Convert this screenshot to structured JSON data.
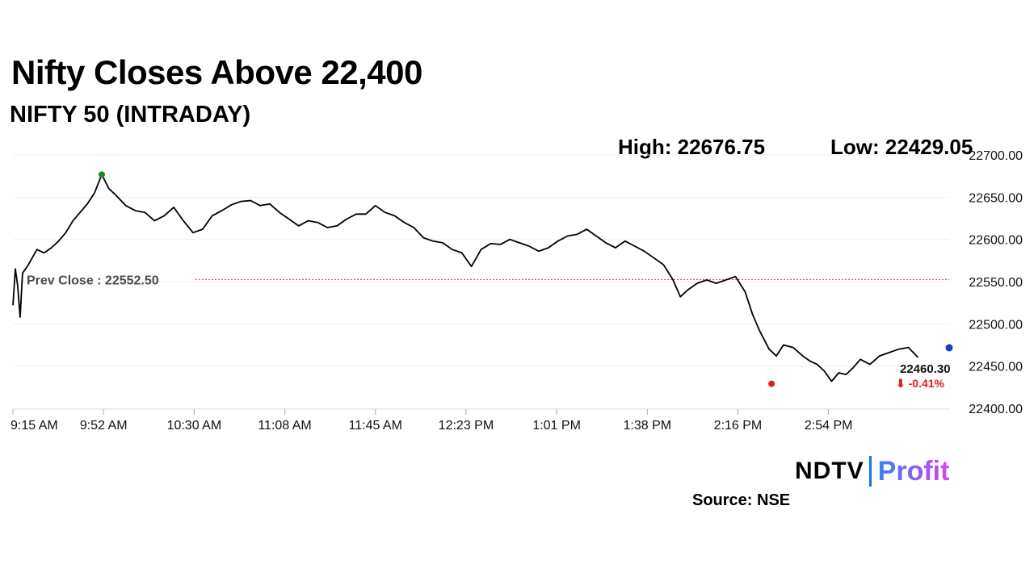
{
  "header": {
    "title": "Nifty Closes Above 22,400",
    "subtitle": "NIFTY 50 (INTRADAY)",
    "high_label": "High: 22676.75",
    "low_label": "Low: 22429.05"
  },
  "footer": {
    "source": "Source: NSE",
    "brand_main": "NDTV",
    "brand_sub": "Profit"
  },
  "chart_data": {
    "type": "line",
    "title": "NIFTY 50 (INTRADAY)",
    "xlabel": "",
    "ylabel": "",
    "x_ticks": [
      "9:15 AM",
      "9:52 AM",
      "10:30 AM",
      "11:08 AM",
      "11:45 AM",
      "12:23 PM",
      "1:01 PM",
      "1:38 PM",
      "2:16 PM",
      "2:54 PM"
    ],
    "y_ticks": [
      "22400.00",
      "22450.00",
      "22500.00",
      "22550.00",
      "22600.00",
      "22650.00",
      "22700.00"
    ],
    "ylim": [
      22400,
      22700
    ],
    "x_range_minutes": [
      555,
      945
    ],
    "prev_close": 22552.5,
    "prev_close_label": "Prev Close : 22552.50",
    "high": {
      "time_min": 592,
      "value": 22676.75
    },
    "low": {
      "time_min": 871,
      "value": 22429.05
    },
    "last": {
      "time_min": 932,
      "value": 22460.3,
      "change": "-0.41%",
      "value_label": "22460.30",
      "change_label": "⬇ -0.41%"
    },
    "end_marker": {
      "time_min": 945,
      "value": 22460.3
    },
    "colors": {
      "line": "#000000",
      "prev_close": "#e53935",
      "high": "#1b8a2e",
      "low": "#e11d1d",
      "end": "#1e3fbf",
      "change": "#e11d1d"
    },
    "series": [
      {
        "name": "NIFTY 50",
        "points": [
          [
            555,
            22522
          ],
          [
            556,
            22565
          ],
          [
            557,
            22545
          ],
          [
            558,
            22508
          ],
          [
            559,
            22560
          ],
          [
            561,
            22568
          ],
          [
            563,
            22578
          ],
          [
            565,
            22588
          ],
          [
            568,
            22584
          ],
          [
            571,
            22590
          ],
          [
            574,
            22598
          ],
          [
            577,
            22608
          ],
          [
            580,
            22622
          ],
          [
            583,
            22632
          ],
          [
            586,
            22642
          ],
          [
            589,
            22655
          ],
          [
            592,
            22676.75
          ],
          [
            595,
            22660
          ],
          [
            598,
            22652
          ],
          [
            602,
            22640
          ],
          [
            606,
            22634
          ],
          [
            610,
            22632
          ],
          [
            614,
            22622
          ],
          [
            618,
            22628
          ],
          [
            622,
            22638
          ],
          [
            626,
            22622
          ],
          [
            630,
            22608
          ],
          [
            634,
            22612
          ],
          [
            638,
            22628
          ],
          [
            642,
            22634
          ],
          [
            646,
            22641
          ],
          [
            650,
            22645
          ],
          [
            654,
            22646
          ],
          [
            658,
            22640
          ],
          [
            662,
            22642
          ],
          [
            666,
            22632
          ],
          [
            670,
            22624
          ],
          [
            674,
            22616
          ],
          [
            678,
            22622
          ],
          [
            682,
            22620
          ],
          [
            686,
            22614
          ],
          [
            690,
            22616
          ],
          [
            694,
            22624
          ],
          [
            698,
            22630
          ],
          [
            702,
            22630
          ],
          [
            706,
            22640
          ],
          [
            710,
            22632
          ],
          [
            714,
            22628
          ],
          [
            718,
            22620
          ],
          [
            722,
            22614
          ],
          [
            726,
            22602
          ],
          [
            730,
            22598
          ],
          [
            734,
            22596
          ],
          [
            738,
            22588
          ],
          [
            742,
            22584
          ],
          [
            746,
            22568
          ],
          [
            750,
            22588
          ],
          [
            754,
            22595
          ],
          [
            758,
            22594
          ],
          [
            762,
            22600
          ],
          [
            766,
            22596
          ],
          [
            770,
            22592
          ],
          [
            774,
            22586
          ],
          [
            778,
            22590
          ],
          [
            782,
            22598
          ],
          [
            786,
            22604
          ],
          [
            790,
            22606
          ],
          [
            794,
            22612
          ],
          [
            798,
            22604
          ],
          [
            802,
            22596
          ],
          [
            806,
            22590
          ],
          [
            810,
            22598
          ],
          [
            814,
            22592
          ],
          [
            818,
            22586
          ],
          [
            822,
            22578
          ],
          [
            826,
            22570
          ],
          [
            830,
            22552
          ],
          [
            833,
            22532
          ],
          [
            836,
            22540
          ],
          [
            840,
            22548
          ],
          [
            844,
            22552
          ],
          [
            848,
            22548
          ],
          [
            852,
            22552
          ],
          [
            856,
            22556
          ],
          [
            860,
            22538
          ],
          [
            863,
            22512
          ],
          [
            866,
            22492
          ],
          [
            870,
            22470
          ],
          [
            873,
            22462
          ],
          [
            876,
            22475
          ],
          [
            880,
            22472
          ],
          [
            884,
            22462
          ],
          [
            887,
            22456
          ],
          [
            890,
            22452
          ],
          [
            893,
            22444
          ],
          [
            896,
            22432
          ],
          [
            899,
            22442
          ],
          [
            902,
            22440
          ],
          [
            905,
            22448
          ],
          [
            908,
            22458
          ],
          [
            912,
            22452
          ],
          [
            916,
            22462
          ],
          [
            920,
            22466
          ],
          [
            924,
            22470
          ],
          [
            928,
            22472
          ],
          [
            932,
            22460.3
          ]
        ]
      }
    ]
  }
}
